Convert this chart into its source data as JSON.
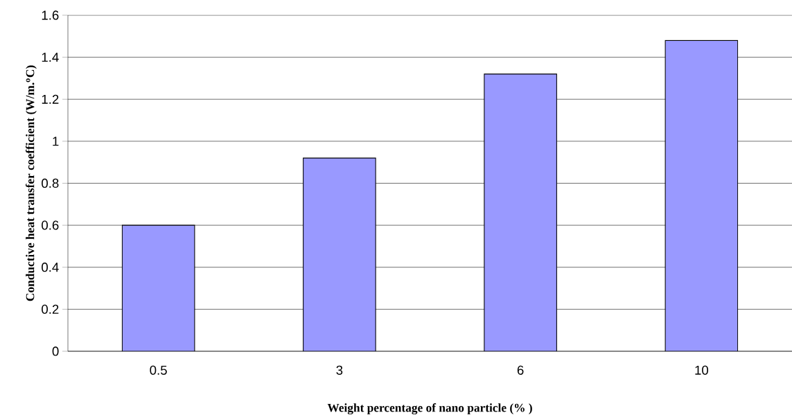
{
  "chart_data": {
    "type": "bar",
    "xlabel": "Weight percentage of nano particle (% )",
    "ylabel": "Conductive heat transfer coefficient (W/m.$^{o}$C)",
    "categories": [
      "0.5",
      "3",
      "6",
      "10"
    ],
    "values": [
      0.6,
      0.92,
      1.32,
      1.48
    ],
    "color": "#9999ff",
    "ylim": [
      0,
      1.6
    ],
    "yticks": [
      0,
      0.2,
      0.4,
      0.6,
      0.8,
      1,
      1.2,
      1.4,
      1.6
    ],
    "grid": "y"
  }
}
